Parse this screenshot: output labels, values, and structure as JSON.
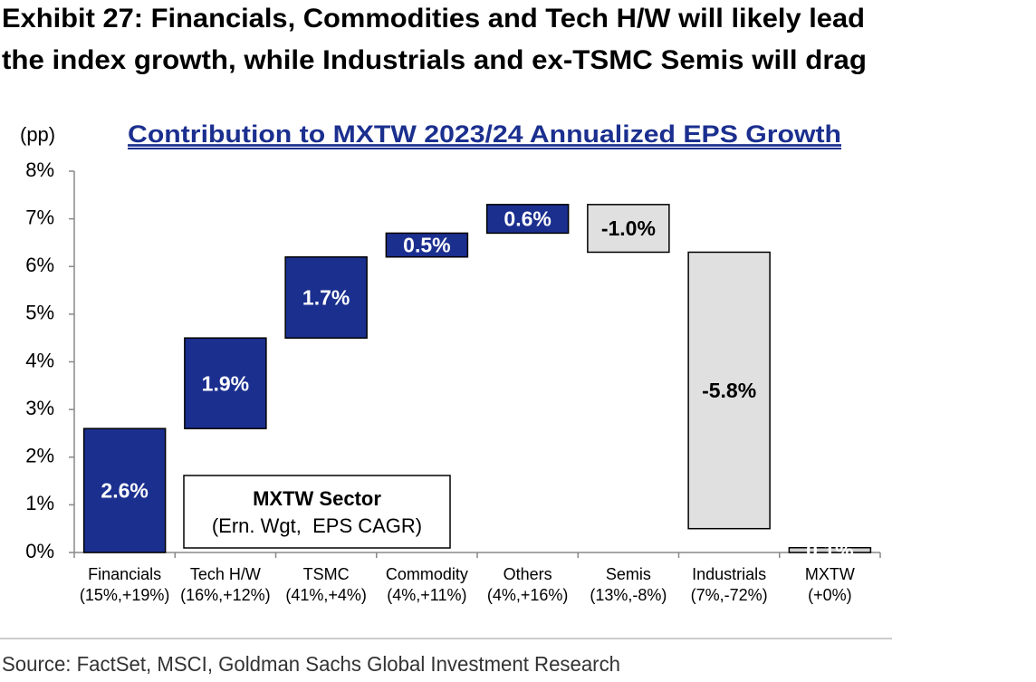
{
  "chart_data": {
    "type": "waterfall",
    "title": [
      "Exhibit 27: Financials, Commodities and Tech H/W will likely lead",
      "the index growth, while Industrials and ex-TSMC Semis will drag"
    ],
    "subtitle": "Contribution to MXTW 2023/24 Annualized EPS Growth",
    "y_label": "(pp)",
    "categories": [
      [
        "Financials",
        "(15%,+19%)"
      ],
      [
        "Tech H/W",
        "(16%,+12%)"
      ],
      [
        "TSMC",
        "(41%,+4%)"
      ],
      [
        "Commodity",
        "(4%,+11%)"
      ],
      [
        "Others",
        "(4%,+16%)"
      ],
      [
        "Semis",
        "(13%,-8%)"
      ],
      [
        "Industrials",
        "(7%,-72%)"
      ],
      [
        "MXTW",
        "(+0%)"
      ]
    ],
    "values": [
      2.6,
      1.9,
      1.7,
      0.5,
      0.6,
      -1.0,
      -5.8,
      0.1
    ],
    "value_labels": [
      "2.6%",
      "1.9%",
      "1.7%",
      "0.5%",
      "0.6%",
      "-1.0%",
      "-5.8%",
      "0.1%"
    ],
    "total_index": 7,
    "colors": {
      "increase": "#1b2f8f",
      "decrease": "#e0e0e0",
      "total": "#d0d0d0"
    },
    "ylim": [
      0,
      8
    ],
    "yticks": [
      {
        "value": 0,
        "label": "0%"
      },
      {
        "value": 1,
        "label": "1%"
      },
      {
        "value": 2,
        "label": "2%"
      },
      {
        "value": 3,
        "label": "3%"
      },
      {
        "value": 4,
        "label": "4%"
      },
      {
        "value": 5,
        "label": "5%"
      },
      {
        "value": 6,
        "label": "6%"
      },
      {
        "value": 7,
        "label": "7%"
      },
      {
        "value": 8,
        "label": "8%"
      }
    ],
    "legend_box": [
      "MXTW Sector",
      "(Ern. Wgt,  EPS CAGR)"
    ],
    "source": "Source: FactSet, MSCI, Goldman Sachs Global Investment Research"
  }
}
